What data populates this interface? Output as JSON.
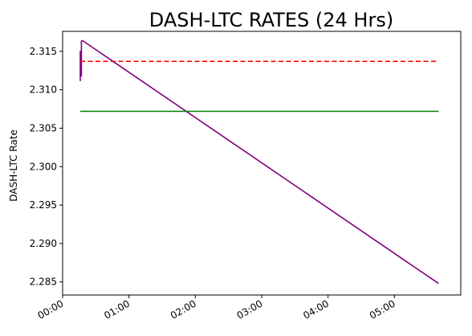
{
  "chart_data": {
    "type": "line",
    "title": "DASH-LTC RATES (24 Hrs)",
    "xlabel": "",
    "ylabel": "DASH-LTC Rate",
    "x_axis": {
      "kind": "time",
      "range": [
        "00:00",
        "06:00"
      ],
      "tick_labels": [
        "00:00",
        "01:00",
        "02:00",
        "03:00",
        "04:00",
        "05:00"
      ]
    },
    "y_axis": {
      "range": [
        2.2833,
        2.3176
      ],
      "ticks": [
        2.285,
        2.29,
        2.295,
        2.3,
        2.305,
        2.31,
        2.315
      ],
      "tick_labels": [
        "2.285",
        "2.290",
        "2.295",
        "2.300",
        "2.305",
        "2.310",
        "2.315"
      ]
    },
    "grid": false,
    "legend": "none",
    "series": [
      {
        "style": "solid",
        "color": "#800080",
        "points": [
          {
            "x": "00:16",
            "y": 2.3125
          },
          {
            "x": "00:16",
            "y": 2.3112
          },
          {
            "x": "00:16",
            "y": 2.315
          },
          {
            "x": "00:17",
            "y": 2.3118
          },
          {
            "x": "00:17",
            "y": 2.3163
          },
          {
            "x": "00:18",
            "y": 2.3164
          },
          {
            "x": "05:40",
            "y": 2.2848
          }
        ]
      },
      {
        "style": "dashed",
        "color": "#ff0000",
        "points": [
          {
            "x": "00:16",
            "y": 2.3137
          },
          {
            "x": "05:40",
            "y": 2.3137
          }
        ]
      },
      {
        "style": "solid",
        "color": "#008000",
        "points": [
          {
            "x": "00:16",
            "y": 2.3072
          },
          {
            "x": "05:40",
            "y": 2.3072
          }
        ]
      }
    ]
  }
}
